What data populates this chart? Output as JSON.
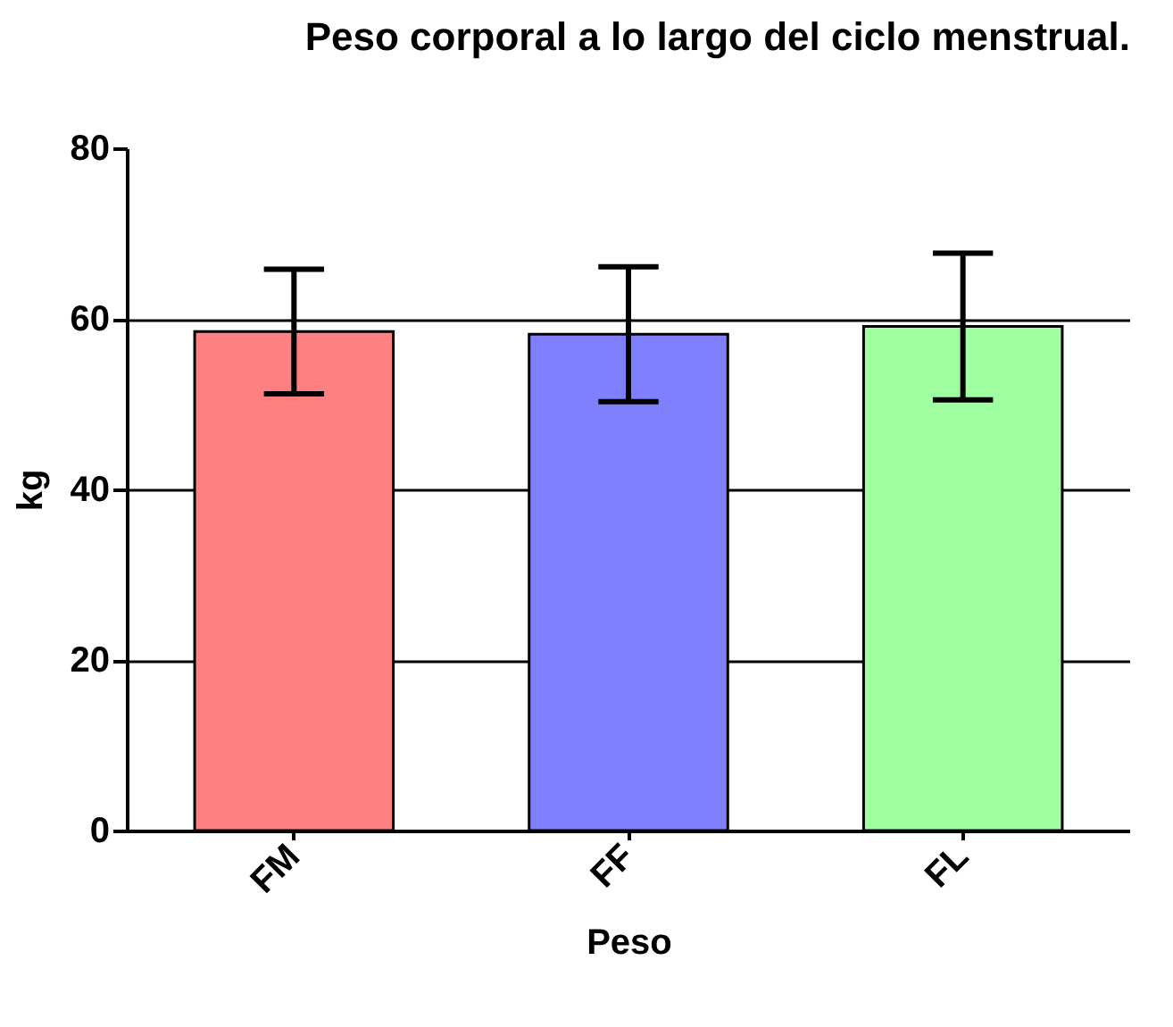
{
  "chart_data": {
    "type": "bar",
    "title": "Peso corporal  a lo largo del ciclo menstrual.",
    "xlabel": "Peso",
    "ylabel": "kg",
    "categories": [
      "FM",
      "FF",
      "FL"
    ],
    "values": [
      58.5,
      58.2,
      59.1
    ],
    "errors": [
      7.3,
      7.9,
      8.6
    ],
    "colors": [
      "#ff8080",
      "#8080ff",
      "#a0ffa0"
    ],
    "ylim": [
      0,
      80
    ],
    "yticks": [
      0,
      20,
      40,
      60,
      80
    ],
    "grid": "y",
    "legend": false
  }
}
